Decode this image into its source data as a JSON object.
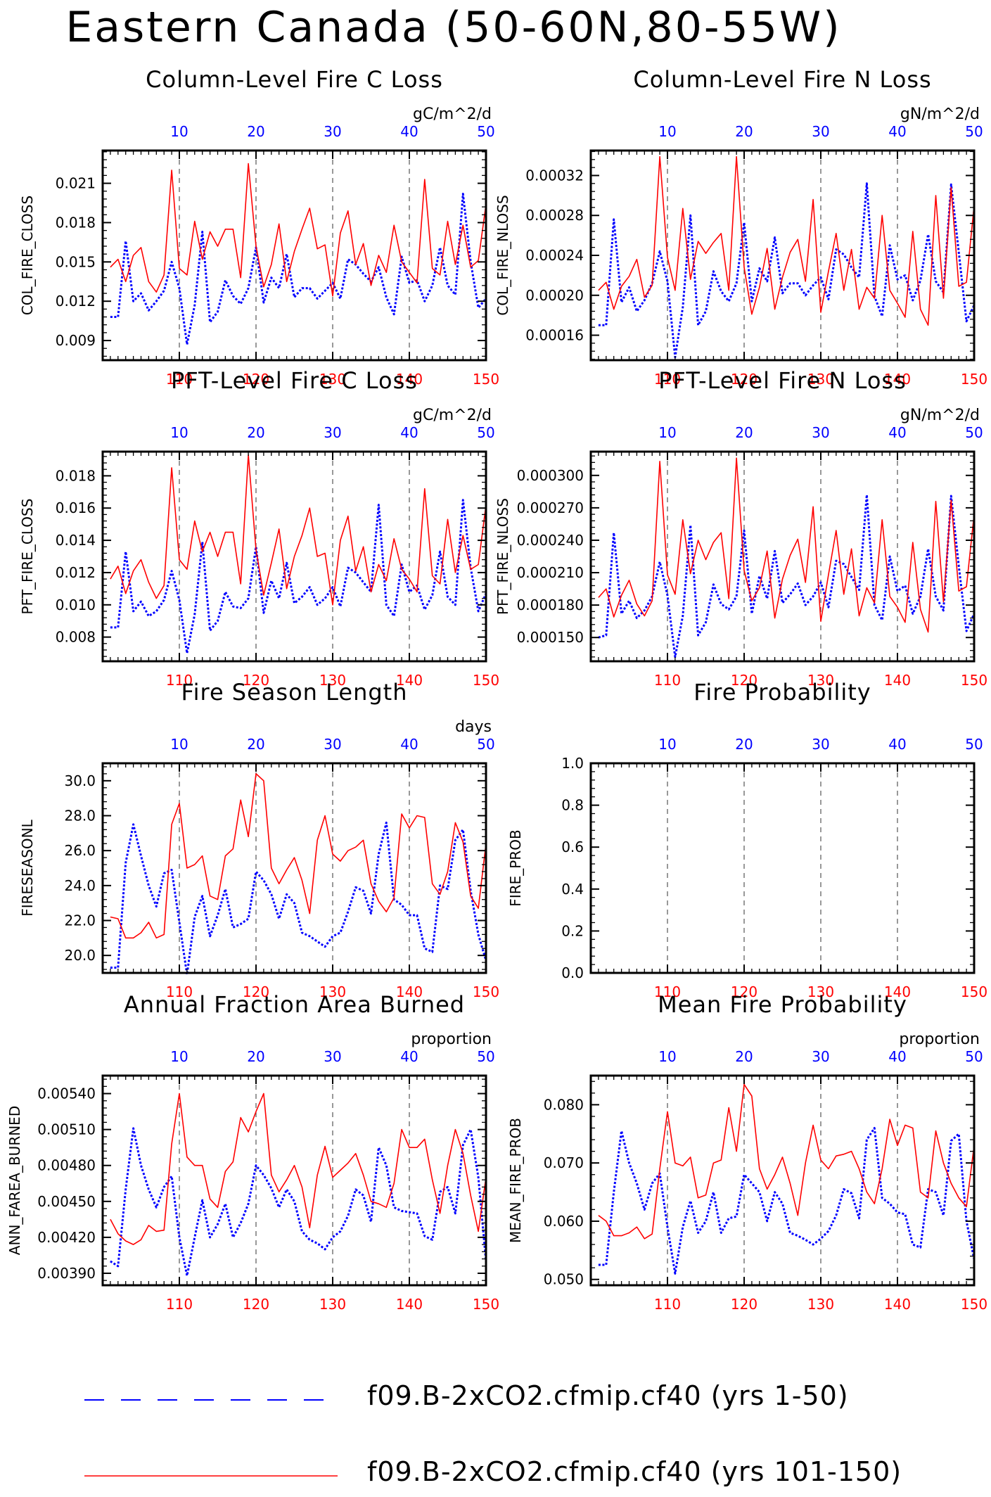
{
  "title": "Eastern Canada (50-60N,80-55W)",
  "colors": {
    "series_a": "#0000ff",
    "series_b": "#ff0000",
    "top_axis": "#0000ff",
    "bottom_axis": "#ff0000"
  },
  "legend": [
    {
      "label": "f09.B-2xCO2.cfmip.cf40 (yrs 1-50)",
      "color": "#0000ff",
      "style": "dashed"
    },
    {
      "label": "f09.B-2xCO2.cfmip.cf40 (yrs 101-150)",
      "color": "#ff0000",
      "style": "solid"
    }
  ],
  "chart_data": [
    {
      "type": "line",
      "title": "Column-Level Fire C Loss",
      "units": "gC/m^2/d",
      "ylabel": "COL_FIRE_CLOSS",
      "ylim": [
        0.0075,
        0.0235
      ],
      "yticks": [
        "0.009",
        "0.012",
        "0.015",
        "0.018",
        "0.021"
      ],
      "x_bottom_ticks": [
        "110",
        "120",
        "130",
        "140",
        "150"
      ],
      "x_top_ticks": [
        "10",
        "20",
        "30",
        "40",
        "50"
      ],
      "series": [
        {
          "values": [
            0.0108,
            0.0108,
            0.0166,
            0.012,
            0.0126,
            0.0113,
            0.012,
            0.0128,
            0.015,
            0.013,
            0.0087,
            0.0117,
            0.0173,
            0.0104,
            0.0112,
            0.0136,
            0.0124,
            0.0118,
            0.013,
            0.0161,
            0.0119,
            0.0138,
            0.013,
            0.0156,
            0.0123,
            0.013,
            0.013,
            0.0122,
            0.0128,
            0.0134,
            0.0122,
            0.0152,
            0.0148,
            0.0141,
            0.0135,
            0.0146,
            0.0123,
            0.011,
            0.0154,
            0.0134,
            0.0136,
            0.012,
            0.0132,
            0.0161,
            0.0132,
            0.0125,
            0.0202,
            0.015,
            0.0115,
            0.0122
          ]
        },
        {
          "values": [
            0.0146,
            0.0152,
            0.0135,
            0.0155,
            0.0161,
            0.0135,
            0.0127,
            0.014,
            0.022,
            0.0145,
            0.014,
            0.0181,
            0.0152,
            0.0173,
            0.0162,
            0.0175,
            0.0175,
            0.0138,
            0.0225,
            0.0162,
            0.0131,
            0.0148,
            0.0179,
            0.0135,
            0.0158,
            0.0175,
            0.0191,
            0.016,
            0.0163,
            0.0124,
            0.0172,
            0.0189,
            0.0148,
            0.0164,
            0.0132,
            0.0155,
            0.0142,
            0.0178,
            0.015,
            0.0142,
            0.0134,
            0.0213,
            0.0145,
            0.014,
            0.0181,
            0.0148,
            0.0178,
            0.0146,
            0.0151,
            0.0194
          ]
        }
      ]
    },
    {
      "type": "line",
      "title": "Column-Level Fire N Loss",
      "units": "gN/m^2/d",
      "ylabel": "COL_FIRE_NLOSS",
      "ylim": [
        0.000135,
        0.000345
      ],
      "yticks": [
        "0.00016",
        "0.00020",
        "0.00024",
        "0.00028",
        "0.00032"
      ],
      "x_bottom_ticks": [
        "110",
        "120",
        "130",
        "140",
        "150"
      ],
      "x_top_ticks": [
        "10",
        "20",
        "30",
        "40",
        "50"
      ],
      "series": [
        {
          "values": [
            0.00017,
            0.00017,
            0.000276,
            0.000193,
            0.000208,
            0.000184,
            0.000195,
            0.000212,
            0.000244,
            0.000214,
            0.000138,
            0.000188,
            0.00028,
            0.00017,
            0.000184,
            0.000224,
            0.000204,
            0.000194,
            0.000212,
            0.000273,
            0.000194,
            0.000227,
            0.000214,
            0.000258,
            0.000202,
            0.000212,
            0.000212,
            0.0002,
            0.00021,
            0.000218,
            0.000196,
            0.000246,
            0.000241,
            0.000228,
            0.000218,
            0.000312,
            0.000199,
            0.000179,
            0.00025,
            0.000216,
            0.00022,
            0.000195,
            0.000215,
            0.000261,
            0.000214,
            0.000203,
            0.000311,
            0.000243,
            0.000174,
            0.00019
          ]
        },
        {
          "values": [
            0.000205,
            0.000213,
            0.000186,
            0.000209,
            0.000219,
            0.000236,
            0.000198,
            0.00021,
            0.000339,
            0.000238,
            0.000205,
            0.000287,
            0.000216,
            0.000254,
            0.000242,
            0.000253,
            0.000262,
            0.000205,
            0.000339,
            0.000228,
            0.000181,
            0.000208,
            0.000247,
            0.000186,
            0.000218,
            0.000243,
            0.000256,
            0.000214,
            0.000296,
            0.000183,
            0.000224,
            0.000262,
            0.000205,
            0.000246,
            0.000186,
            0.000208,
            0.000197,
            0.00028,
            0.000205,
            0.000192,
            0.000178,
            0.000264,
            0.000186,
            0.00017,
            0.0003,
            0.000197,
            0.000308,
            0.000209,
            0.000213,
            0.00029
          ]
        }
      ]
    },
    {
      "type": "line",
      "title": "PFT-Level Fire C Loss",
      "units": "gC/m^2/d",
      "ylabel": "PFT_FIRE_CLOSS",
      "ylim": [
        0.0065,
        0.0195
      ],
      "yticks": [
        "0.008",
        "0.010",
        "0.012",
        "0.014",
        "0.016",
        "0.018"
      ],
      "x_bottom_ticks": [
        "110",
        "120",
        "130",
        "140",
        "150"
      ],
      "x_top_ticks": [
        "10",
        "20",
        "30",
        "40",
        "50"
      ],
      "series": [
        {
          "values": [
            0.0086,
            0.0086,
            0.0133,
            0.0096,
            0.0102,
            0.0093,
            0.0096,
            0.0103,
            0.0121,
            0.0103,
            0.007,
            0.0094,
            0.0139,
            0.0084,
            0.009,
            0.0108,
            0.0099,
            0.0098,
            0.0104,
            0.0136,
            0.0095,
            0.0115,
            0.0104,
            0.0126,
            0.0101,
            0.0105,
            0.0111,
            0.01,
            0.0104,
            0.0111,
            0.0099,
            0.0123,
            0.012,
            0.0114,
            0.0108,
            0.0162,
            0.01,
            0.0093,
            0.0125,
            0.0108,
            0.0112,
            0.0097,
            0.0106,
            0.0133,
            0.0105,
            0.01,
            0.0165,
            0.0123,
            0.0096,
            0.0107
          ]
        },
        {
          "values": [
            0.0116,
            0.0124,
            0.0107,
            0.0121,
            0.0128,
            0.0114,
            0.0104,
            0.0112,
            0.0185,
            0.0128,
            0.0122,
            0.0152,
            0.0133,
            0.0145,
            0.013,
            0.0145,
            0.0145,
            0.0113,
            0.0193,
            0.0134,
            0.0106,
            0.0126,
            0.0147,
            0.011,
            0.013,
            0.0143,
            0.016,
            0.013,
            0.0132,
            0.01,
            0.014,
            0.0155,
            0.0121,
            0.0136,
            0.0108,
            0.0125,
            0.0115,
            0.0141,
            0.0122,
            0.0116,
            0.0108,
            0.0172,
            0.0118,
            0.0113,
            0.0153,
            0.012,
            0.0143,
            0.0122,
            0.0125,
            0.0162
          ]
        }
      ]
    },
    {
      "type": "line",
      "title": "PFT-Level Fire N Loss",
      "units": "gN/m^2/d",
      "ylabel": "PFT_FIRE_NLOSS",
      "ylim": [
        0.000128,
        0.000322
      ],
      "yticks": [
        "0.000150",
        "0.000180",
        "0.000210",
        "0.000240",
        "0.000270",
        "0.000300"
      ],
      "x_bottom_ticks": [
        "110",
        "120",
        "130",
        "140",
        "150"
      ],
      "x_top_ticks": [
        "10",
        "20",
        "30",
        "40",
        "50"
      ],
      "series": [
        {
          "values": [
            0.00015,
            0.000152,
            0.000247,
            0.000172,
            0.000184,
            0.000168,
            0.000175,
            0.000188,
            0.00022,
            0.000189,
            0.000132,
            0.00017,
            0.000254,
            0.000152,
            0.000164,
            0.000199,
            0.000181,
            0.000176,
            0.000188,
            0.000249,
            0.000172,
            0.000207,
            0.000186,
            0.00023,
            0.000182,
            0.00019,
            0.0002,
            0.00018,
            0.000188,
            0.000201,
            0.000178,
            0.000221,
            0.000218,
            0.000206,
            0.000194,
            0.000282,
            0.00018,
            0.000166,
            0.000225,
            0.000193,
            0.000198,
            0.000172,
            0.000188,
            0.000232,
            0.000188,
            0.000175,
            0.000281,
            0.000216,
            0.000156,
            0.000172
          ]
        },
        {
          "values": [
            0.000187,
            0.000195,
            0.000169,
            0.000189,
            0.000203,
            0.000181,
            0.00017,
            0.000184,
            0.000313,
            0.000208,
            0.00019,
            0.000259,
            0.000209,
            0.00024,
            0.000222,
            0.000238,
            0.000247,
            0.000186,
            0.000316,
            0.000212,
            0.000184,
            0.000196,
            0.00023,
            0.000168,
            0.000204,
            0.000226,
            0.000241,
            0.000201,
            0.000271,
            0.000165,
            0.000208,
            0.000249,
            0.00019,
            0.000232,
            0.00017,
            0.000196,
            0.000182,
            0.000259,
            0.000188,
            0.000178,
            0.000164,
            0.000238,
            0.000176,
            0.000155,
            0.000276,
            0.000183,
            0.000277,
            0.000193,
            0.000197,
            0.000264
          ]
        }
      ]
    },
    {
      "type": "line",
      "title": "Fire Season Length",
      "units": "days",
      "ylabel": "FIRESEASONL",
      "ylim": [
        19.0,
        31.0
      ],
      "yticks": [
        "20.0",
        "22.0",
        "24.0",
        "26.0",
        "28.0",
        "30.0"
      ],
      "x_bottom_ticks": [
        "110",
        "120",
        "130",
        "140",
        "150"
      ],
      "x_top_ticks": [
        "10",
        "20",
        "30",
        "40",
        "50"
      ],
      "series": [
        {
          "values": [
            19.3,
            19.3,
            25.3,
            27.5,
            25.7,
            24.0,
            22.8,
            24.7,
            24.9,
            21.9,
            18.9,
            22.2,
            23.4,
            21.1,
            22.3,
            23.8,
            21.6,
            21.8,
            22.1,
            24.8,
            24.3,
            23.5,
            22.1,
            23.5,
            23.0,
            21.3,
            21.1,
            20.8,
            20.5,
            21.1,
            21.3,
            22.5,
            23.9,
            23.7,
            22.4,
            25.8,
            27.6,
            23.2,
            22.9,
            22.3,
            22.3,
            20.4,
            20.2,
            24.0,
            23.8,
            26.6,
            27.2,
            23.7,
            21.2,
            19.7
          ]
        },
        {
          "values": [
            22.2,
            22.1,
            21.0,
            21.0,
            21.3,
            21.9,
            21.0,
            21.2,
            27.5,
            28.7,
            25.0,
            25.2,
            25.7,
            23.4,
            23.2,
            25.7,
            26.1,
            28.9,
            26.8,
            30.4,
            30.0,
            25.0,
            24.1,
            24.9,
            25.6,
            24.3,
            22.4,
            26.6,
            28.0,
            25.8,
            25.4,
            26.0,
            26.2,
            26.6,
            24.1,
            23.1,
            22.5,
            23.3,
            28.1,
            27.3,
            28.0,
            27.9,
            24.1,
            23.5,
            24.8,
            27.6,
            26.5,
            23.4,
            22.7,
            26.4
          ]
        }
      ]
    },
    {
      "type": "line",
      "title": "Fire Probability",
      "units": "",
      "ylabel": "FIRE_PROB",
      "ylim": [
        0.0,
        1.0
      ],
      "yticks": [
        "0.0",
        "0.2",
        "0.4",
        "0.6",
        "0.8",
        "1.0"
      ],
      "x_bottom_ticks": [
        "110",
        "120",
        "130",
        "140",
        "150"
      ],
      "x_top_ticks": [
        "10",
        "20",
        "30",
        "40",
        "50"
      ],
      "series": []
    },
    {
      "type": "line",
      "title": "Annual Fraction Area Burned",
      "units": "proportion",
      "ylabel": "ANN_FAREA_BURNED",
      "ylim": [
        0.0038,
        0.00555
      ],
      "yticks": [
        "0.00390",
        "0.00420",
        "0.00450",
        "0.00480",
        "0.00510",
        "0.00540"
      ],
      "x_bottom_ticks": [
        "110",
        "120",
        "130",
        "140",
        "150"
      ],
      "x_top_ticks": [
        "10",
        "20",
        "30",
        "40",
        "50"
      ],
      "series": [
        {
          "values": [
            0.004,
            0.00396,
            0.0046,
            0.00511,
            0.0048,
            0.0046,
            0.00445,
            0.00462,
            0.00471,
            0.0042,
            0.00388,
            0.0042,
            0.00451,
            0.0042,
            0.00431,
            0.00448,
            0.0042,
            0.00432,
            0.00448,
            0.0048,
            0.00472,
            0.00461,
            0.00445,
            0.0046,
            0.0045,
            0.00425,
            0.00418,
            0.00415,
            0.0041,
            0.0042,
            0.00425,
            0.00438,
            0.0046,
            0.00455,
            0.00433,
            0.00495,
            0.0048,
            0.00445,
            0.00442,
            0.00441,
            0.0044,
            0.00421,
            0.00418,
            0.00458,
            0.00462,
            0.0044,
            0.00497,
            0.0051,
            0.0047,
            0.004
          ]
        },
        {
          "values": [
            0.00435,
            0.00423,
            0.00417,
            0.00414,
            0.00418,
            0.0043,
            0.00425,
            0.00426,
            0.00498,
            0.0054,
            0.00487,
            0.0048,
            0.0048,
            0.00452,
            0.00445,
            0.00475,
            0.00483,
            0.0052,
            0.00508,
            0.00525,
            0.0054,
            0.00472,
            0.00458,
            0.00468,
            0.0048,
            0.00462,
            0.00428,
            0.00472,
            0.00496,
            0.0047,
            0.00476,
            0.00482,
            0.0049,
            0.00472,
            0.0045,
            0.00448,
            0.00445,
            0.00465,
            0.0051,
            0.00495,
            0.00495,
            0.00502,
            0.00468,
            0.0044,
            0.0048,
            0.0051,
            0.0049,
            0.00455,
            0.00425,
            0.0047
          ]
        }
      ]
    },
    {
      "type": "line",
      "title": "Mean Fire Probability",
      "units": "proportion",
      "ylabel": "MEAN_FIRE_PROB",
      "ylim": [
        0.049,
        0.085
      ],
      "yticks": [
        "0.050",
        "0.060",
        "0.070",
        "0.080"
      ],
      "x_bottom_ticks": [
        "110",
        "120",
        "130",
        "140",
        "150"
      ],
      "x_top_ticks": [
        "10",
        "20",
        "30",
        "40",
        "50"
      ],
      "series": [
        {
          "values": [
            0.0525,
            0.0525,
            0.065,
            0.0755,
            0.07,
            0.0665,
            0.062,
            0.0665,
            0.0682,
            0.059,
            0.051,
            0.059,
            0.0635,
            0.058,
            0.06,
            0.065,
            0.058,
            0.0605,
            0.0608,
            0.068,
            0.0665,
            0.065,
            0.06,
            0.065,
            0.063,
            0.058,
            0.0575,
            0.0568,
            0.056,
            0.057,
            0.0583,
            0.061,
            0.0655,
            0.0648,
            0.0605,
            0.074,
            0.076,
            0.064,
            0.063,
            0.0615,
            0.0612,
            0.056,
            0.0555,
            0.0655,
            0.065,
            0.061,
            0.0738,
            0.075,
            0.06,
            0.0535
          ]
        },
        {
          "values": [
            0.061,
            0.06,
            0.0575,
            0.0575,
            0.058,
            0.059,
            0.057,
            0.0578,
            0.069,
            0.0788,
            0.07,
            0.0695,
            0.071,
            0.064,
            0.0645,
            0.07,
            0.0705,
            0.0795,
            0.072,
            0.0835,
            0.0815,
            0.069,
            0.0655,
            0.068,
            0.071,
            0.0665,
            0.061,
            0.07,
            0.0765,
            0.0705,
            0.069,
            0.0712,
            0.0715,
            0.072,
            0.069,
            0.065,
            0.063,
            0.069,
            0.0775,
            0.073,
            0.0765,
            0.076,
            0.065,
            0.064,
            0.0755,
            0.07,
            0.0665,
            0.064,
            0.0625,
            0.073
          ]
        }
      ]
    }
  ]
}
